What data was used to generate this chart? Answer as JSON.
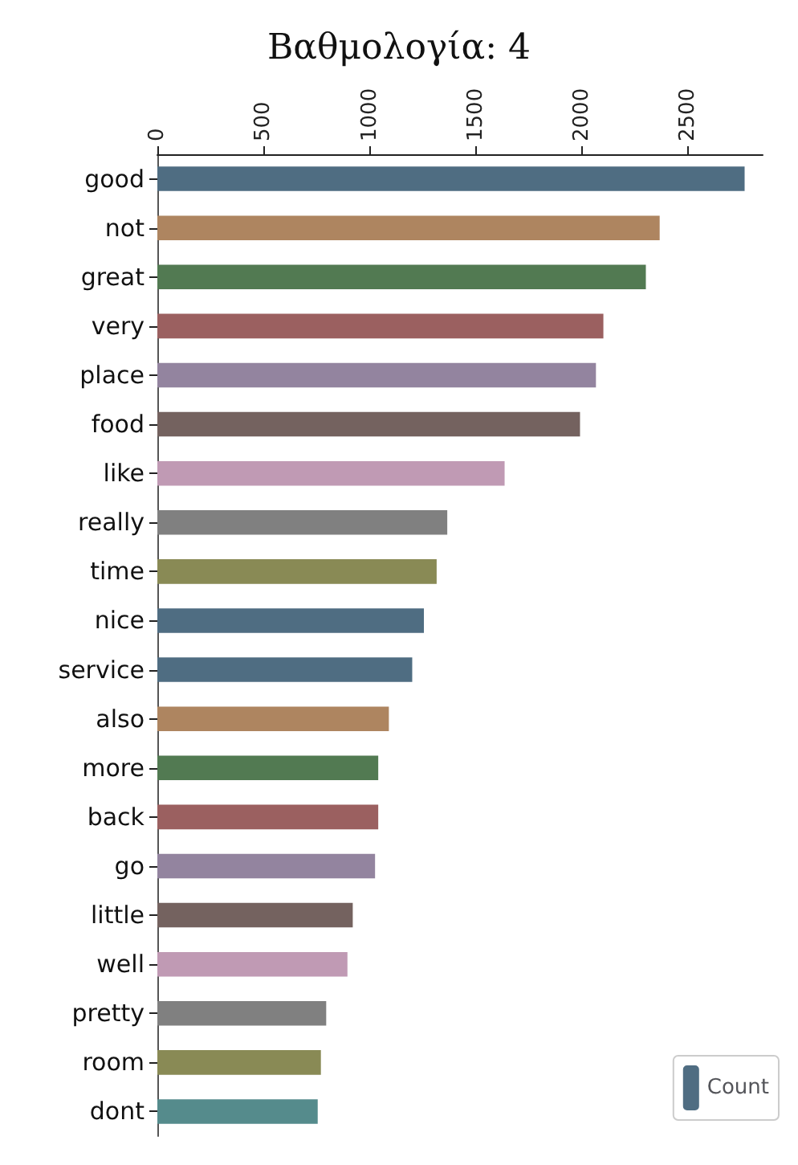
{
  "chart_data": {
    "type": "bar",
    "orientation": "horizontal",
    "title": "Βαθμολογία: 4",
    "categories": [
      "good",
      "not",
      "great",
      "very",
      "place",
      "food",
      "like",
      "really",
      "time",
      "nice",
      "service",
      "also",
      "more",
      "back",
      "go",
      "little",
      "well",
      "pretty",
      "room",
      "dont"
    ],
    "series": [
      {
        "name": "Count",
        "values": [
          2765,
          2365,
          2300,
          2100,
          2065,
          1990,
          1635,
          1365,
          1315,
          1255,
          1200,
          1090,
          1040,
          1040,
          1025,
          920,
          895,
          795,
          770,
          755
        ],
        "colors": [
          "#4f6d82",
          "#ae8560",
          "#527a52",
          "#9b6060",
          "#93849f",
          "#74625f",
          "#c09ab4",
          "#808080",
          "#898a55",
          "#4f6d82",
          "#4f6d82",
          "#ae8560",
          "#527a52",
          "#9b6060",
          "#93849f",
          "#74625f",
          "#c09ab4",
          "#808080",
          "#898a55",
          "#558b8c"
        ]
      }
    ],
    "xlim": [
      0,
      2850
    ],
    "xticks": [
      0,
      500,
      1000,
      1500,
      2000,
      2500
    ],
    "grid": false,
    "legend": "bottom right"
  }
}
